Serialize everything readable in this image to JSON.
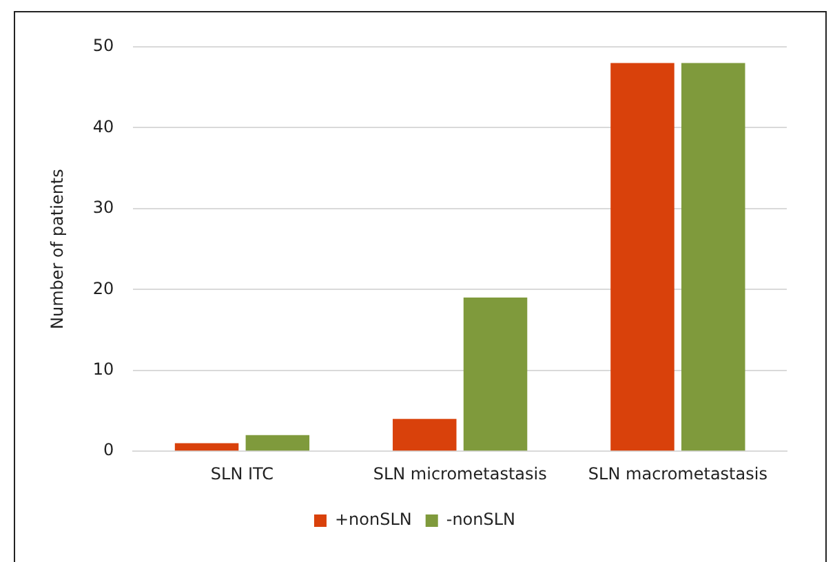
{
  "chart_data": {
    "type": "bar",
    "ylabel": "Number of patients",
    "categories": [
      "SLN ITC",
      "SLN micrometastasis",
      "SLN macrometastasis"
    ],
    "series": [
      {
        "name": "+nonSLN",
        "color": "#d9410b",
        "values": [
          1,
          4,
          48
        ]
      },
      {
        "name": "-nonSLN",
        "color": "#7f9a3c",
        "values": [
          2,
          19,
          48
        ]
      }
    ],
    "ylim": [
      0,
      50
    ],
    "yticks": [
      0,
      10,
      20,
      30,
      40,
      50
    ],
    "grid": "y",
    "legend": "bottom"
  }
}
